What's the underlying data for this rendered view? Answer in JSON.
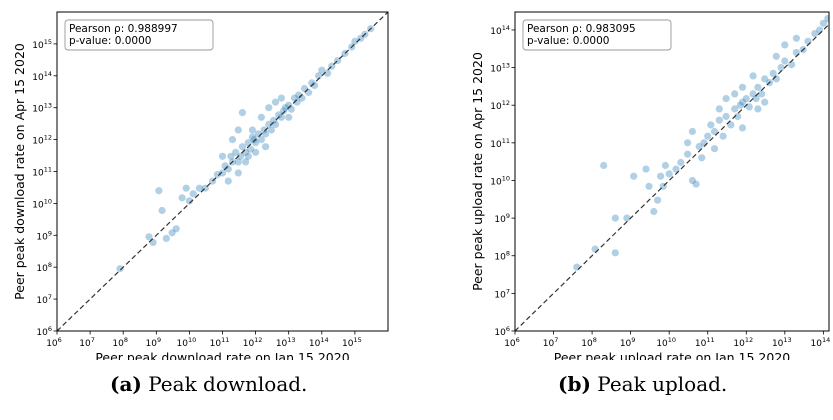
{
  "chart_data": [
    {
      "type": "scatter",
      "xlabel": "Peer peak download rate on Jan 15 2020",
      "ylabel": "Peer peak download rate on Apr 15 2020",
      "x_scale": "log",
      "y_scale": "log",
      "xlim": [
        1000000.0,
        1e+16
      ],
      "ylim": [
        1000000.0,
        1e+16
      ],
      "x_ticks": [
        1000000.0,
        10000000.0,
        100000000.0,
        1000000000.0,
        10000000000.0,
        100000000000.0,
        1000000000000.0,
        10000000000000.0,
        100000000000000.0,
        1000000000000000.0
      ],
      "y_ticks": [
        1000000.0,
        10000000.0,
        100000000.0,
        1000000000.0,
        10000000000.0,
        100000000000.0,
        1000000000000.0,
        10000000000000.0,
        100000000000000.0,
        1000000000000000.0
      ],
      "reference_line": "y = x (dashed)",
      "point_color": "#1f77b4",
      "annotation": [
        "Pearson ρ: 0.988997",
        "p-value: 0.0000"
      ],
      "caption_label": "(a)",
      "caption_text": "Peak download.",
      "points": [
        [
          80000000.0,
          90000000.0
        ],
        [
          600000000.0,
          900000000.0
        ],
        [
          800000000.0,
          600000000.0
        ],
        [
          1200000000.0,
          25000000000.0
        ],
        [
          1500000000.0,
          6000000000.0
        ],
        [
          2000000000.0,
          800000000.0
        ],
        [
          3000000000.0,
          1200000000.0
        ],
        [
          4000000000.0,
          1600000000.0
        ],
        [
          6000000000.0,
          15000000000.0
        ],
        [
          8000000000.0,
          30000000000.0
        ],
        [
          10000000000.0,
          12000000000.0
        ],
        [
          13000000000.0,
          20000000000.0
        ],
        [
          20000000000.0,
          30000000000.0
        ],
        [
          30000000000.0,
          30000000000.0
        ],
        [
          50000000000.0,
          50000000000.0
        ],
        [
          70000000000.0,
          80000000000.0
        ],
        [
          100000000000.0,
          90000000000.0
        ],
        [
          120000000000.0,
          150000000000.0
        ],
        [
          150000000000.0,
          120000000000.0
        ],
        [
          180000000000.0,
          300000000000.0
        ],
        [
          200000000000.0,
          200000000000.0
        ],
        [
          250000000000.0,
          400000000000.0
        ],
        [
          300000000000.0,
          200000000000.0
        ],
        [
          350000000000.0,
          300000000000.0
        ],
        [
          400000000000.0,
          600000000000.0
        ],
        [
          500000000000.0,
          400000000000.0
        ],
        [
          600000000000.0,
          800000000000.0
        ],
        [
          700000000000.0,
          500000000000.0
        ],
        [
          800000000000.0,
          1200000000000.0
        ],
        [
          900000000000.0,
          1000000000000.0
        ],
        [
          1000000000000.0,
          800000000000.0
        ],
        [
          1200000000000.0,
          1500000000000.0
        ],
        [
          1500000000000.0,
          1000000000000.0
        ],
        [
          1800000000000.0,
          2000000000000.0
        ],
        [
          2000000000000.0,
          1500000000000.0
        ],
        [
          2500000000000.0,
          3000000000000.0
        ],
        [
          3000000000000.0,
          2000000000000.0
        ],
        [
          3500000000000.0,
          4000000000000.0
        ],
        [
          4000000000000.0,
          3000000000000.0
        ],
        [
          5000000000000.0,
          6000000000000.0
        ],
        [
          6000000000000.0,
          5000000000000.0
        ],
        [
          7000000000000.0,
          8000000000000.0
        ],
        [
          8000000000000.0,
          10000000000000.0
        ],
        [
          10000000000000.0,
          12000000000000.0
        ],
        [
          12000000000000.0,
          9000000000000.0
        ],
        [
          15000000000000.0,
          20000000000000.0
        ],
        [
          18000000000000.0,
          15000000000000.0
        ],
        [
          20000000000000.0,
          25000000000000.0
        ],
        [
          25000000000000.0,
          20000000000000.0
        ],
        [
          30000000000000.0,
          40000000000000.0
        ],
        [
          40000000000000.0,
          30000000000000.0
        ],
        [
          50000000000000.0,
          60000000000000.0
        ],
        [
          60000000000000.0,
          50000000000000.0
        ],
        [
          80000000000000.0,
          100000000000000.0
        ],
        [
          100000000000000.0,
          150000000000000.0
        ],
        [
          150000000000000.0,
          120000000000000.0
        ],
        [
          200000000000000.0,
          200000000000000.0
        ],
        [
          300000000000000.0,
          300000000000000.0
        ],
        [
          500000000000000.0,
          500000000000000.0
        ],
        [
          800000000000000.0,
          800000000000000.0
        ],
        [
          1000000000000000.0,
          1200000000000000.0
        ],
        [
          1500000000000000.0,
          1500000000000000.0
        ],
        [
          2000000000000000.0,
          2000000000000000.0
        ],
        [
          3000000000000000.0,
          3000000000000000.0
        ],
        [
          400000000000.0,
          7000000000000.0
        ],
        [
          300000000000.0,
          2000000000000.0
        ],
        [
          200000000000.0,
          1000000000000.0
        ],
        [
          500000000000.0,
          200000000000.0
        ],
        [
          100000000000.0,
          300000000000.0
        ],
        [
          150000000000.0,
          50000000000.0
        ],
        [
          300000000000.0,
          90000000000.0
        ],
        [
          600000000000.0,
          300000000000.0
        ],
        [
          1000000000000.0,
          400000000000.0
        ],
        [
          2000000000000.0,
          600000000000.0
        ],
        [
          800000000000.0,
          2000000000000.0
        ],
        [
          1500000000000.0,
          5000000000000.0
        ],
        [
          2500000000000.0,
          10000000000000.0
        ],
        [
          4000000000000.0,
          15000000000000.0
        ],
        [
          6000000000000.0,
          20000000000000.0
        ],
        [
          10000000000000.0,
          5000000000000.0
        ]
      ]
    },
    {
      "type": "scatter",
      "xlabel": "Peer peak upload rate on Jan 15 2020",
      "ylabel": "Peer peak upload rate on Apr 15 2020",
      "x_scale": "log",
      "y_scale": "log",
      "xlim": [
        1000000.0,
        140000000000000.0
      ],
      "ylim": [
        1000000.0,
        300000000000000.0
      ],
      "x_ticks": [
        1000000.0,
        10000000.0,
        100000000.0,
        1000000000.0,
        10000000000.0,
        100000000000.0,
        1000000000000.0,
        10000000000000.0,
        100000000000000.0
      ],
      "y_ticks": [
        1000000.0,
        10000000.0,
        100000000.0,
        1000000000.0,
        10000000000.0,
        100000000000.0,
        1000000000000.0,
        10000000000000.0,
        100000000000000.0
      ],
      "reference_line": "y = x (dashed)",
      "point_color": "#1f77b4",
      "annotation": [
        "Pearson ρ: 0.983095",
        "p-value: 0.0000"
      ],
      "caption_label": "(b)",
      "caption_text": "Peak upload.",
      "points": [
        [
          40000000.0,
          50000000.0
        ],
        [
          120000000.0,
          150000000.0
        ],
        [
          200000000.0,
          25000000000.0
        ],
        [
          400000000.0,
          1000000000.0
        ],
        [
          400000000.0,
          120000000.0
        ],
        [
          800000000.0,
          1000000000.0
        ],
        [
          1200000000.0,
          13000000000.0
        ],
        [
          2500000000.0,
          20000000000.0
        ],
        [
          3000000000.0,
          7000000000.0
        ],
        [
          4000000000.0,
          1500000000.0
        ],
        [
          5000000000.0,
          3000000000.0
        ],
        [
          6000000000.0,
          13000000000.0
        ],
        [
          7000000000.0,
          7000000000.0
        ],
        [
          8000000000.0,
          25000000000.0
        ],
        [
          10000000000.0,
          15000000000.0
        ],
        [
          15000000000.0,
          20000000000.0
        ],
        [
          20000000000.0,
          30000000000.0
        ],
        [
          30000000000.0,
          50000000000.0
        ],
        [
          40000000000.0,
          10000000000.0
        ],
        [
          50000000000.0,
          8000000000.0
        ],
        [
          60000000000.0,
          80000000000.0
        ],
        [
          80000000000.0,
          100000000000.0
        ],
        [
          100000000000.0,
          150000000000.0
        ],
        [
          120000000000.0,
          300000000000.0
        ],
        [
          150000000000.0,
          200000000000.0
        ],
        [
          200000000000.0,
          400000000000.0
        ],
        [
          250000000000.0,
          150000000000.0
        ],
        [
          300000000000.0,
          500000000000.0
        ],
        [
          400000000000.0,
          300000000000.0
        ],
        [
          500000000000.0,
          800000000000.0
        ],
        [
          600000000000.0,
          500000000000.0
        ],
        [
          700000000000.0,
          1000000000000.0
        ],
        [
          800000000000.0,
          1200000000000.0
        ],
        [
          1000000000000.0,
          1500000000000.0
        ],
        [
          1200000000000.0,
          900000000000.0
        ],
        [
          1500000000000.0,
          2000000000000.0
        ],
        [
          1800000000000.0,
          1500000000000.0
        ],
        [
          2000000000000.0,
          3000000000000.0
        ],
        [
          2500000000000.0,
          2000000000000.0
        ],
        [
          3000000000000.0,
          5000000000000.0
        ],
        [
          4000000000000.0,
          4000000000000.0
        ],
        [
          5000000000000.0,
          7000000000000.0
        ],
        [
          6000000000000.0,
          5000000000000.0
        ],
        [
          8000000000000.0,
          10000000000000.0
        ],
        [
          10000000000000.0,
          15000000000000.0
        ],
        [
          15000000000000.0,
          12000000000000.0
        ],
        [
          20000000000000.0,
          25000000000000.0
        ],
        [
          30000000000000.0,
          30000000000000.0
        ],
        [
          40000000000000.0,
          50000000000000.0
        ],
        [
          60000000000000.0,
          80000000000000.0
        ],
        [
          80000000000000.0,
          100000000000000.0
        ],
        [
          100000000000000.0,
          150000000000000.0
        ],
        [
          130000000000000.0,
          200000000000000.0
        ],
        [
          500000000000.0,
          2000000000000.0
        ],
        [
          800000000000.0,
          3000000000000.0
        ],
        [
          300000000000.0,
          1500000000000.0
        ],
        [
          200000000000.0,
          800000000000.0
        ],
        [
          40000000000.0,
          200000000000.0
        ],
        [
          30000000000.0,
          100000000000.0
        ],
        [
          70000000000.0,
          40000000000.0
        ],
        [
          150000000000.0,
          70000000000.0
        ],
        [
          2000000000000.0,
          800000000000.0
        ],
        [
          3000000000000.0,
          1200000000000.0
        ],
        [
          6000000000000.0,
          20000000000000.0
        ],
        [
          10000000000000.0,
          40000000000000.0
        ],
        [
          20000000000000.0,
          60000000000000.0
        ],
        [
          1500000000000.0,
          6000000000000.0
        ],
        [
          800000000000.0,
          250000000000.0
        ]
      ]
    }
  ]
}
